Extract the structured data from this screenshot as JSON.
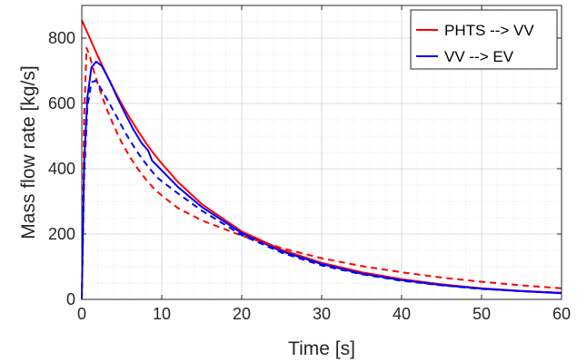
{
  "chart_data": {
    "type": "line",
    "title": "",
    "xlabel": "Time [s]",
    "ylabel": "Mass flow rate [kg/s]",
    "xlim": [
      0,
      60
    ],
    "ylim": [
      0,
      900
    ],
    "xticks": [
      "0",
      "10",
      "20",
      "30",
      "40",
      "50",
      "60"
    ],
    "yticks": [
      "0",
      "200",
      "400",
      "600",
      "800"
    ],
    "grid": true,
    "legend_position": "top-right",
    "legend": [
      "PHTS --> VV",
      "VV --> EV"
    ],
    "colors": {
      "red": "#ff0000",
      "blue": "#0000ff"
    },
    "series": [
      {
        "name": "PHTS --> VV",
        "color": "#ff0000",
        "dash": "solid",
        "x": [
          0,
          1,
          2,
          3,
          4,
          5,
          6,
          7,
          8,
          9,
          10,
          12,
          15,
          20,
          25,
          30,
          35,
          40,
          45,
          50,
          55,
          60
        ],
        "y": [
          855,
          800,
          745,
          693,
          644,
          598,
          556,
          517,
          480,
          446,
          416,
          360,
          292,
          208,
          152,
          112,
          83,
          62,
          46,
          34,
          26,
          20
        ]
      },
      {
        "name": "VV --> EV",
        "color": "#0000ff",
        "dash": "solid",
        "x": [
          0,
          0.3,
          0.7,
          1.2,
          1.8,
          2.5,
          3.5,
          4.5,
          5.5,
          6.5,
          7.5,
          8.3,
          8.8,
          10,
          12,
          15,
          20,
          25,
          30,
          35,
          40,
          45,
          50,
          55,
          60
        ],
        "y": [
          0,
          420,
          620,
          710,
          728,
          715,
          668,
          615,
          565,
          518,
          478,
          456,
          425,
          395,
          345,
          283,
          203,
          147,
          108,
          79,
          59,
          44,
          33,
          25,
          19
        ]
      },
      {
        "name": "",
        "color": "#ff0000",
        "dash": "dashed",
        "x": [
          0,
          0.3,
          0.6,
          1,
          1.5,
          2,
          3,
          4,
          5,
          6,
          7,
          8,
          9,
          10,
          12,
          15,
          20,
          25,
          30,
          35,
          40,
          45,
          50,
          55,
          60
        ],
        "y": [
          0,
          560,
          770,
          745,
          700,
          660,
          590,
          532,
          480,
          437,
          400,
          368,
          340,
          318,
          280,
          242,
          195,
          157,
          126,
          102,
          83,
          67,
          54,
          43,
          34
        ]
      },
      {
        "name": "",
        "color": "#0000ff",
        "dash": "dashed",
        "x": [
          0,
          0.3,
          0.7,
          1.2,
          1.8,
          2.5,
          3.5,
          4.5,
          5.5,
          6.5,
          7.5,
          8.5,
          9.5,
          10,
          12,
          15,
          20,
          25,
          30,
          35,
          40,
          45,
          50,
          55,
          60
        ],
        "y": [
          0,
          380,
          590,
          665,
          670,
          640,
          598,
          553,
          508,
          468,
          432,
          400,
          372,
          362,
          325,
          272,
          197,
          143,
          104,
          77,
          57,
          43,
          32,
          25,
          20
        ]
      }
    ]
  }
}
